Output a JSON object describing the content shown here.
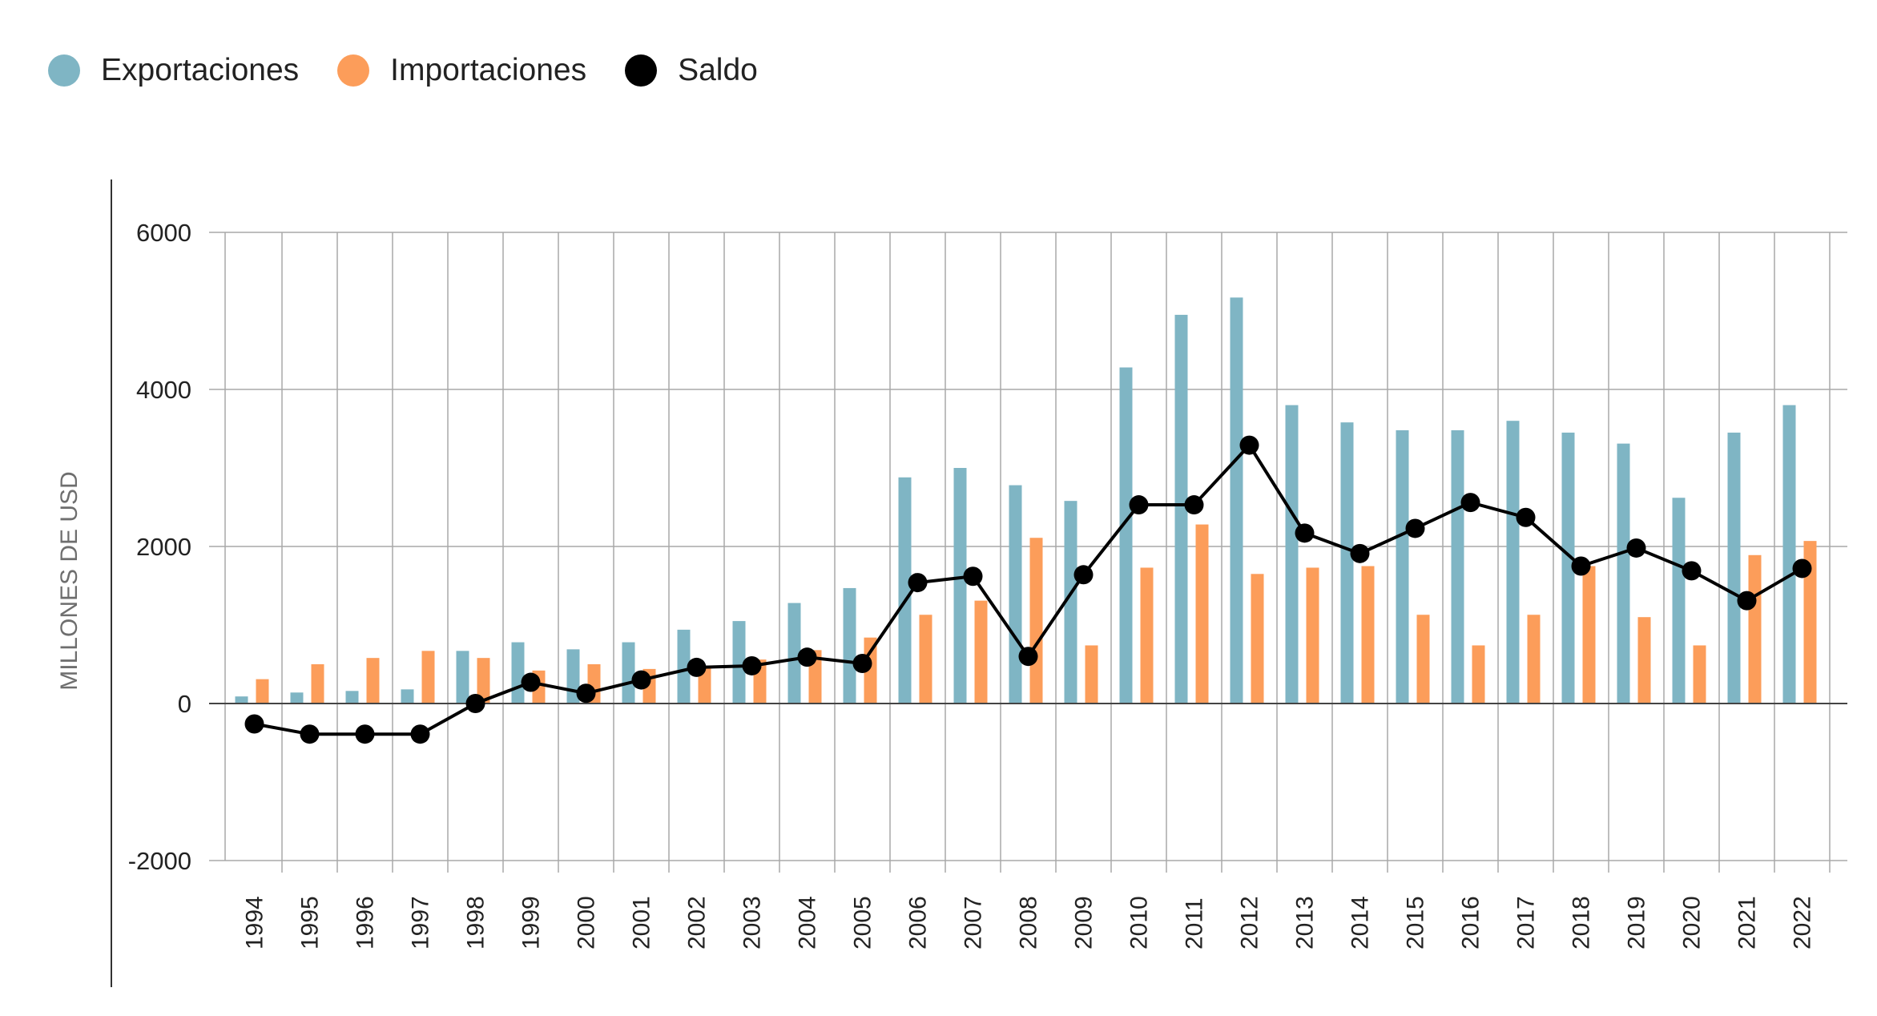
{
  "colors": {
    "exportaciones": "#7fb5c4",
    "importaciones": "#fc9d5a",
    "saldo": "#000000",
    "grid": "#a9a9a9",
    "axis": "#333333",
    "ylabel": "#6e6e6e"
  },
  "legend": [
    {
      "label": "Exportaciones",
      "color": "#7fb5c4"
    },
    {
      "label": "Importaciones",
      "color": "#fc9d5a"
    },
    {
      "label": "Saldo",
      "color": "#000000"
    }
  ],
  "chart_data": {
    "type": "bar",
    "title": "",
    "xlabel": "",
    "ylabel": "MILLONES DE USD",
    "ylim": [
      -2000,
      6000
    ],
    "yticks": [
      6000,
      4000,
      2000,
      0,
      -2000
    ],
    "grid": true,
    "legend_position": "top-left",
    "categories": [
      "1994",
      "1995",
      "1996",
      "1997",
      "1998",
      "1999",
      "2000",
      "2001",
      "2002",
      "2003",
      "2004",
      "2005",
      "2006",
      "2007",
      "2008",
      "2009",
      "2010",
      "2011",
      "2012",
      "2013",
      "2014",
      "2015",
      "2016",
      "2017",
      "2018",
      "2019",
      "2020",
      "2021",
      "2022"
    ],
    "series": [
      {
        "name": "Exportaciones",
        "type": "bar",
        "color": "#7fb5c4",
        "values": [
          90,
          140,
          160,
          180,
          670,
          780,
          690,
          780,
          940,
          1050,
          1280,
          1470,
          2880,
          3000,
          2780,
          2580,
          4280,
          4950,
          5170,
          3800,
          3580,
          3480,
          3480,
          3600,
          3450,
          3310,
          2620,
          3450,
          3800
        ]
      },
      {
        "name": "Importaciones",
        "type": "bar",
        "color": "#fc9d5a",
        "values": [
          310,
          500,
          580,
          670,
          580,
          420,
          500,
          440,
          470,
          560,
          680,
          840,
          1130,
          1310,
          2110,
          740,
          1730,
          2280,
          1650,
          1730,
          1750,
          1130,
          740,
          1130,
          1750,
          1100,
          740,
          1890,
          2070
        ]
      },
      {
        "name": "Saldo",
        "type": "line",
        "color": "#000000",
        "values": [
          -260,
          -390,
          -390,
          -390,
          0,
          270,
          130,
          300,
          460,
          480,
          590,
          510,
          1540,
          1620,
          600,
          1640,
          2530,
          2530,
          3290,
          2170,
          1910,
          2230,
          2560,
          2370,
          1750,
          1980,
          1690,
          1310,
          1720
        ]
      }
    ]
  }
}
